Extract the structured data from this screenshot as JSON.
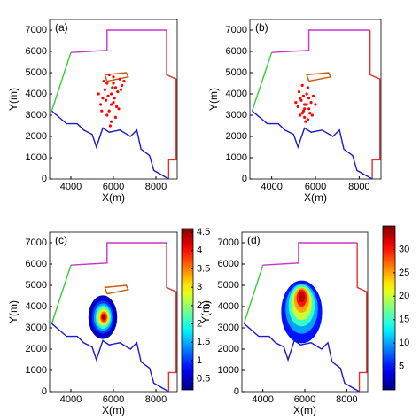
{
  "chart_data": [
    {
      "type": "scatter",
      "panel_label": "(a)",
      "xlabel": "X(m)",
      "ylabel": "Y(m)",
      "xlim": [
        3000,
        9000
      ],
      "ylim": [
        0,
        7500
      ],
      "xticks": [
        4000,
        6000,
        8000
      ],
      "yticks": [
        0,
        1000,
        2000,
        3000,
        4000,
        5000,
        6000,
        7000
      ],
      "series": [
        {
          "color": "#33cc33",
          "x": [
            3100,
            4000
          ],
          "y": [
            3200,
            5950
          ]
        },
        {
          "color": "#cc33cc",
          "x": [
            4000,
            5700,
            5700,
            8500
          ],
          "y": [
            5950,
            6050,
            7000,
            7000
          ]
        },
        {
          "color": "#dd3333",
          "x": [
            8500,
            8500,
            8950,
            8950,
            8600,
            8600
          ],
          "y": [
            7000,
            4900,
            4700,
            900,
            900,
            0
          ]
        },
        {
          "color": "#1a1acc",
          "x": [
            3100,
            3800,
            4300,
            4600,
            5000,
            5200,
            5500,
            5800,
            6300,
            6800,
            7100,
            7300,
            7700,
            7900,
            8600
          ],
          "y": [
            3200,
            2600,
            2600,
            2300,
            2100,
            1500,
            2400,
            2200,
            2300,
            2000,
            2300,
            1400,
            1100,
            400,
            0
          ]
        },
        {
          "color": "#cc5500",
          "x": [
            5700,
            6700,
            6600,
            5600,
            5700
          ],
          "y": [
            4600,
            4800,
            5000,
            4900,
            4600
          ]
        }
      ],
      "points": {
        "color": "#ff0000",
        "x": [
          5900,
          5700,
          6100,
          6300,
          5500,
          5800,
          6000,
          6200,
          5600,
          5400,
          6400,
          5900,
          6100,
          5700,
          6000,
          5800,
          6500,
          5300,
          5650,
          6150,
          5950,
          5750,
          6050,
          6250,
          5850,
          5450,
          6350,
          5550,
          6000,
          5900
        ],
        "y": [
          4000,
          4500,
          4300,
          4700,
          3800,
          3200,
          3600,
          4100,
          4200,
          3500,
          4400,
          2700,
          2900,
          3000,
          4800,
          4900,
          4600,
          4000,
          3700,
          3400,
          4300,
          3900,
          3800,
          3300,
          2500,
          3200,
          4200,
          4600,
          4500,
          3500
        ]
      }
    },
    {
      "type": "scatter",
      "panel_label": "(b)",
      "xlabel": "X(m)",
      "ylabel": "Y(m)",
      "xlim": [
        3000,
        9000
      ],
      "ylim": [
        0,
        7500
      ],
      "xticks": [
        4000,
        6000,
        8000
      ],
      "yticks": [
        0,
        1000,
        2000,
        3000,
        4000,
        5000,
        6000,
        7000
      ],
      "series": [
        {
          "color": "#33cc33",
          "x": [
            3100,
            4000
          ],
          "y": [
            3200,
            5950
          ]
        },
        {
          "color": "#cc33cc",
          "x": [
            4000,
            5700,
            5700,
            8500
          ],
          "y": [
            5950,
            6050,
            7000,
            7000
          ]
        },
        {
          "color": "#dd3333",
          "x": [
            8500,
            8500,
            8950,
            8950,
            8600,
            8600
          ],
          "y": [
            7000,
            4900,
            4700,
            900,
            900,
            0
          ]
        },
        {
          "color": "#1a1acc",
          "x": [
            3100,
            3800,
            4300,
            4600,
            5000,
            5200,
            5500,
            5800,
            6300,
            6800,
            7100,
            7300,
            7700,
            7900,
            8600
          ],
          "y": [
            3200,
            2600,
            2600,
            2300,
            2100,
            1500,
            2400,
            2200,
            2300,
            2000,
            2300,
            1400,
            1100,
            400,
            0
          ]
        },
        {
          "color": "#cc5500",
          "x": [
            5700,
            6700,
            6600,
            5600,
            5700
          ],
          "y": [
            4600,
            4800,
            5000,
            4900,
            4600
          ]
        }
      ],
      "points": {
        "color": "#ff0000",
        "x": [
          5500,
          5300,
          5700,
          5600,
          5400,
          5800,
          5200,
          5900,
          5500,
          5650,
          5350,
          5450,
          6000,
          5100,
          5550,
          5750,
          5250,
          5600,
          5400,
          5700,
          5500,
          5850,
          5300,
          5450,
          5650
        ],
        "y": [
          3500,
          3800,
          3300,
          4000,
          3100,
          3600,
          3400,
          3900,
          2900,
          4300,
          3700,
          3200,
          3500,
          3600,
          2700,
          3100,
          4100,
          3500,
          4400,
          3800,
          3300,
          3000,
          3000,
          3900,
          2800
        ]
      }
    },
    {
      "type": "contour",
      "panel_label": "(c)",
      "xlabel": "X(m)",
      "ylabel": "Y(m)",
      "xlim": [
        3000,
        9000
      ],
      "ylim": [
        0,
        7500
      ],
      "xticks": [
        4000,
        6000,
        8000
      ],
      "yticks": [
        0,
        1000,
        2000,
        3000,
        4000,
        5000,
        6000,
        7000
      ],
      "series": [
        {
          "color": "#33cc33",
          "x": [
            3100,
            4000
          ],
          "y": [
            3200,
            5950
          ]
        },
        {
          "color": "#cc33cc",
          "x": [
            4000,
            5700,
            5700,
            8500
          ],
          "y": [
            5950,
            6050,
            7000,
            7000
          ]
        },
        {
          "color": "#dd3333",
          "x": [
            8500,
            8500,
            8950,
            8950,
            8600,
            8600
          ],
          "y": [
            7000,
            4900,
            4700,
            900,
            900,
            0
          ]
        },
        {
          "color": "#1a1acc",
          "x": [
            3100,
            3800,
            4300,
            4600,
            5000,
            5200,
            5500,
            5800,
            6300,
            6800,
            7100,
            7300,
            7700,
            7900,
            8600
          ],
          "y": [
            3200,
            2600,
            2600,
            2300,
            2100,
            1500,
            2400,
            2200,
            2300,
            2000,
            2300,
            1400,
            1100,
            400,
            0
          ]
        },
        {
          "color": "#cc5500",
          "x": [
            5700,
            6700,
            6600,
            5600,
            5700
          ],
          "y": [
            4600,
            4800,
            5000,
            4900,
            4600
          ]
        }
      ],
      "colormap": "jet",
      "clim": [
        0.2,
        4.6
      ],
      "cticks": [
        0.5,
        1,
        1.5,
        2,
        2.5,
        3,
        3.5,
        4,
        4.5
      ],
      "contours": [
        {
          "level": 0.5,
          "cx": 5500,
          "cy": 3500,
          "rx": 650,
          "ry": 1000
        },
        {
          "level": 1,
          "cx": 5500,
          "cy": 3500,
          "rx": 480,
          "ry": 750
        },
        {
          "level": 1.5,
          "cx": 5510,
          "cy": 3500,
          "rx": 400,
          "ry": 620
        },
        {
          "level": 2,
          "cx": 5520,
          "cy": 3500,
          "rx": 330,
          "ry": 520
        },
        {
          "level": 2.5,
          "cx": 5530,
          "cy": 3500,
          "rx": 270,
          "ry": 420
        },
        {
          "level": 3,
          "cx": 5540,
          "cy": 3500,
          "rx": 210,
          "ry": 330
        },
        {
          "level": 3.5,
          "cx": 5550,
          "cy": 3500,
          "rx": 160,
          "ry": 250
        },
        {
          "level": 4,
          "cx": 5550,
          "cy": 3500,
          "rx": 110,
          "ry": 170
        },
        {
          "level": 4.5,
          "cx": 5550,
          "cy": 3500,
          "rx": 60,
          "ry": 90
        }
      ]
    },
    {
      "type": "contour",
      "panel_label": "(d)",
      "xlabel": "X(m)",
      "ylabel": "Y(m)",
      "xlim": [
        3000,
        9000
      ],
      "ylim": [
        0,
        7500
      ],
      "xticks": [
        4000,
        6000,
        8000
      ],
      "yticks": [
        0,
        1000,
        2000,
        3000,
        4000,
        5000,
        6000,
        7000
      ],
      "series": [
        {
          "color": "#33cc33",
          "x": [
            3100,
            4000
          ],
          "y": [
            3200,
            5950
          ]
        },
        {
          "color": "#cc33cc",
          "x": [
            4000,
            5700,
            5700,
            8500
          ],
          "y": [
            5950,
            6050,
            7000,
            7000
          ]
        },
        {
          "color": "#dd3333",
          "x": [
            8500,
            8500,
            8950,
            8950,
            8600,
            8600
          ],
          "y": [
            7000,
            4900,
            4700,
            900,
            900,
            0
          ]
        },
        {
          "color": "#1a1acc",
          "x": [
            3100,
            3800,
            4300,
            4600,
            5000,
            5200,
            5500,
            5800,
            6300,
            6800,
            7100,
            7300,
            7700,
            7900,
            8600
          ],
          "y": [
            3200,
            2600,
            2600,
            2300,
            2100,
            1500,
            2400,
            2200,
            2300,
            2000,
            2300,
            1400,
            1100,
            400,
            0
          ]
        }
      ],
      "colormap": "jet",
      "clim": [
        0,
        35
      ],
      "cticks": [
        5,
        10,
        15,
        20,
        25,
        30
      ],
      "contours": [
        {
          "level": 5,
          "cx": 5850,
          "cy": 3750,
          "rx": 950,
          "ry": 1450
        },
        {
          "level": 10,
          "cx": 5850,
          "cy": 3900,
          "rx": 750,
          "ry": 1150
        },
        {
          "level": 15,
          "cx": 5850,
          "cy": 4050,
          "rx": 600,
          "ry": 950
        },
        {
          "level": 20,
          "cx": 5850,
          "cy": 4150,
          "rx": 470,
          "ry": 760
        },
        {
          "level": 25,
          "cx": 5850,
          "cy": 4300,
          "rx": 340,
          "ry": 560
        },
        {
          "level": 30,
          "cx": 5850,
          "cy": 4400,
          "rx": 220,
          "ry": 380
        },
        {
          "level": 33,
          "cx": 5850,
          "cy": 4450,
          "rx": 120,
          "ry": 220
        }
      ]
    }
  ]
}
